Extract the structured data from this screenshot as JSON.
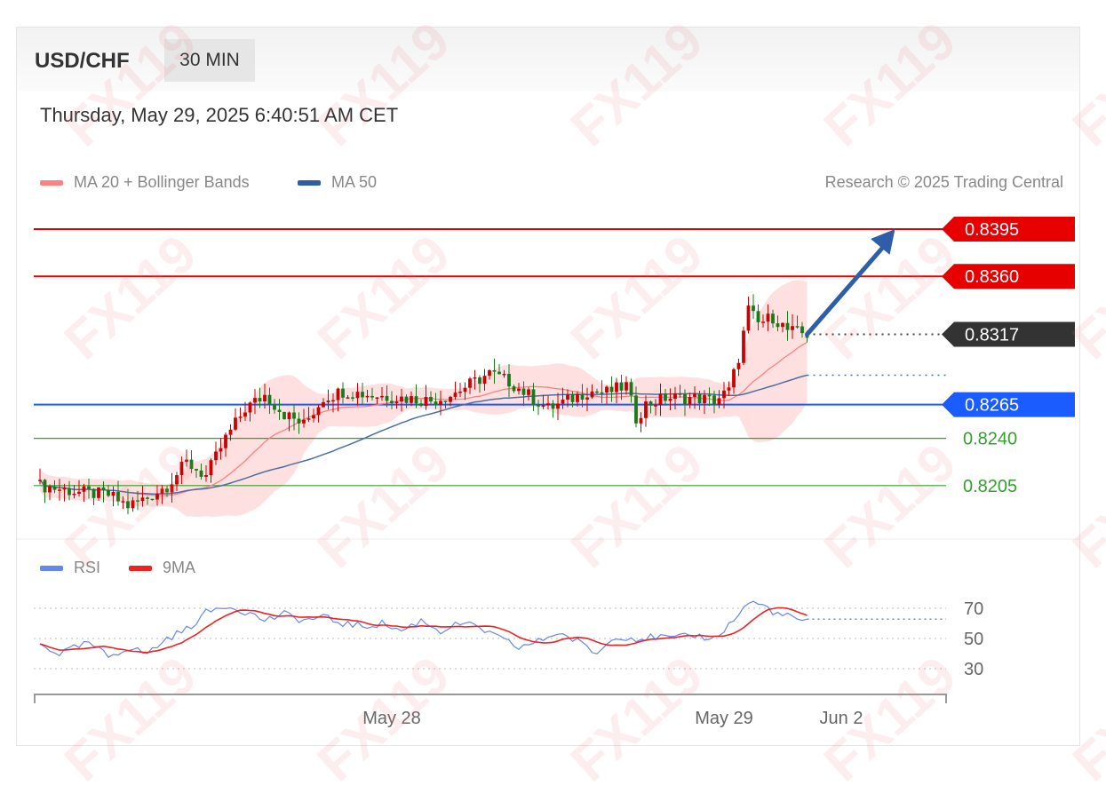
{
  "header": {
    "symbol": "USD/CHF",
    "timeframe": "30 MIN",
    "datetime": "Thursday, May 29, 2025 6:40:51 AM CET"
  },
  "legend": {
    "ma20_label": "MA 20 + Bollinger Bands",
    "ma50_label": "MA 50",
    "copyright": "Research © 2025 Trading Central"
  },
  "rsi_legend": {
    "rsi_label": "RSI",
    "ma9_label": "9MA"
  },
  "watermark": "FX119",
  "colors": {
    "resistance": "#e60000",
    "support_pivot": "#1a5cff",
    "support": "#33a02c",
    "current": "#333333",
    "candle_up": "#cc0000",
    "candle_down": "#1a7a1a",
    "bollinger": "#ffd6d6",
    "ma20": "#ff8080",
    "ma50": "#4a6fa5",
    "rsi": "#6688ee",
    "rsi_ma": "#ee2222",
    "arrow": "#2d5fa8"
  },
  "chart_data": [
    {
      "type": "candlestick",
      "price_levels": [
        {
          "value": 0.8395,
          "label": "0.8395",
          "role": "resistance"
        },
        {
          "value": 0.836,
          "label": "0.8360",
          "role": "resistance"
        },
        {
          "value": 0.8317,
          "label": "0.8317",
          "role": "current"
        },
        {
          "value": 0.8265,
          "label": "0.8265",
          "role": "pivot"
        },
        {
          "value": 0.824,
          "label": "0.8240",
          "role": "support"
        },
        {
          "value": 0.8205,
          "label": "0.8205",
          "role": "support"
        }
      ],
      "ylim": [
        0.817,
        0.842
      ],
      "x_ticks": [
        {
          "label": "May 28",
          "index": 72
        },
        {
          "label": "May 29",
          "index": 140
        },
        {
          "label": "Jun 2",
          "index": 164
        }
      ],
      "x_count": 170,
      "arrow": {
        "from_index": 157,
        "from_value": 0.8317,
        "to_index": 175,
        "to_value": 0.8395
      },
      "anchors": [
        [
          0,
          0.8205
        ],
        [
          8,
          0.82
        ],
        [
          14,
          0.8198
        ],
        [
          18,
          0.819
        ],
        [
          22,
          0.8196
        ],
        [
          26,
          0.8205
        ],
        [
          30,
          0.8222
        ],
        [
          34,
          0.8212
        ],
        [
          38,
          0.824
        ],
        [
          42,
          0.8262
        ],
        [
          46,
          0.8272
        ],
        [
          50,
          0.8258
        ],
        [
          54,
          0.825
        ],
        [
          58,
          0.827
        ],
        [
          62,
          0.8275
        ],
        [
          68,
          0.8272
        ],
        [
          74,
          0.827
        ],
        [
          80,
          0.8268
        ],
        [
          84,
          0.8272
        ],
        [
          88,
          0.828
        ],
        [
          92,
          0.8288
        ],
        [
          96,
          0.8282
        ],
        [
          100,
          0.8272
        ],
        [
          104,
          0.8262
        ],
        [
          108,
          0.8268
        ],
        [
          112,
          0.8275
        ],
        [
          116,
          0.8274
        ],
        [
          120,
          0.8279
        ],
        [
          122,
          0.8255
        ],
        [
          124,
          0.8265
        ],
        [
          128,
          0.827
        ],
        [
          134,
          0.827
        ],
        [
          138,
          0.8268
        ],
        [
          141,
          0.8275
        ],
        [
          143,
          0.83
        ],
        [
          145,
          0.8335
        ],
        [
          147,
          0.8325
        ],
        [
          150,
          0.833
        ],
        [
          153,
          0.832
        ],
        [
          157,
          0.8317
        ]
      ]
    },
    {
      "type": "line",
      "title": "RSI",
      "yticks": [
        30,
        50,
        70
      ],
      "ylim": [
        20,
        80
      ],
      "anchors": [
        [
          0,
          46
        ],
        [
          4,
          40
        ],
        [
          10,
          47
        ],
        [
          14,
          38
        ],
        [
          18,
          44
        ],
        [
          22,
          40
        ],
        [
          26,
          50
        ],
        [
          30,
          56
        ],
        [
          34,
          67
        ],
        [
          38,
          72
        ],
        [
          42,
          68
        ],
        [
          46,
          62
        ],
        [
          50,
          66
        ],
        [
          54,
          62
        ],
        [
          58,
          64
        ],
        [
          62,
          60
        ],
        [
          66,
          58
        ],
        [
          70,
          60
        ],
        [
          74,
          55
        ],
        [
          78,
          62
        ],
        [
          82,
          55
        ],
        [
          86,
          60
        ],
        [
          90,
          57
        ],
        [
          94,
          50
        ],
        [
          98,
          44
        ],
        [
          102,
          48
        ],
        [
          106,
          54
        ],
        [
          110,
          48
        ],
        [
          114,
          40
        ],
        [
          118,
          52
        ],
        [
          122,
          50
        ],
        [
          126,
          51
        ],
        [
          130,
          50
        ],
        [
          134,
          52
        ],
        [
          138,
          50
        ],
        [
          142,
          62
        ],
        [
          145,
          74
        ],
        [
          148,
          72
        ],
        [
          151,
          66
        ],
        [
          154,
          64
        ],
        [
          157,
          61
        ]
      ]
    }
  ]
}
